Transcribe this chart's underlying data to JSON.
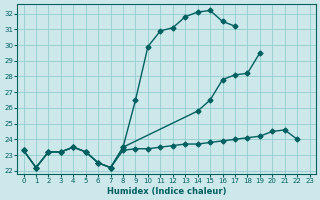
{
  "bg_color": "#cce8ea",
  "grid_color": "#88c8c8",
  "line_color": "#006060",
  "line_width": 1.0,
  "marker": "D",
  "marker_size": 2.5,
  "xlabel": "Humidex (Indice chaleur)",
  "ylim": [
    21.8,
    32.6
  ],
  "xlim": [
    -0.5,
    23.5
  ],
  "yticks": [
    22,
    23,
    24,
    25,
    26,
    27,
    28,
    29,
    30,
    31,
    32
  ],
  "xticks": [
    0,
    1,
    2,
    3,
    4,
    5,
    6,
    7,
    8,
    9,
    10,
    11,
    12,
    13,
    14,
    15,
    16,
    17,
    18,
    19,
    20,
    21,
    22,
    23
  ],
  "line1_x": [
    0,
    1,
    2,
    3,
    4,
    5,
    6,
    7,
    8,
    9,
    10,
    11,
    12,
    13,
    14,
    15,
    16,
    17
  ],
  "line1_y": [
    23.3,
    22.2,
    23.2,
    23.2,
    23.5,
    23.2,
    22.5,
    22.2,
    23.5,
    26.5,
    29.9,
    30.9,
    31.1,
    31.8,
    32.1,
    32.2,
    31.5,
    31.2
  ],
  "line2_x": [
    0,
    1,
    2,
    3,
    4,
    5,
    6,
    7,
    8,
    14,
    15,
    16,
    17,
    18,
    19
  ],
  "line2_y": [
    23.3,
    22.2,
    23.2,
    23.2,
    23.5,
    23.2,
    22.5,
    22.2,
    23.5,
    25.8,
    26.5,
    27.8,
    28.1,
    28.2,
    29.5
  ],
  "line3_x": [
    0,
    1,
    2,
    3,
    4,
    5,
    6,
    7,
    8,
    9,
    10,
    11,
    12,
    13,
    14,
    15,
    16,
    17,
    18,
    19,
    20,
    21,
    22
  ],
  "line3_y": [
    23.3,
    22.2,
    23.2,
    23.2,
    23.5,
    23.2,
    22.5,
    22.2,
    23.3,
    23.4,
    23.4,
    23.5,
    23.6,
    23.7,
    23.7,
    23.8,
    23.9,
    24.0,
    24.1,
    24.2,
    24.5,
    24.6,
    24.0
  ]
}
